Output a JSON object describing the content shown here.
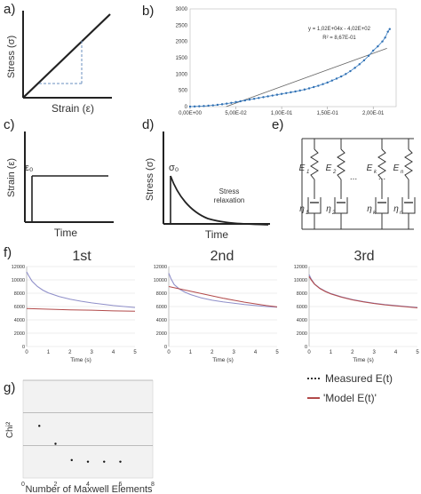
{
  "labels": {
    "a": "a)",
    "b": "b)",
    "c": "c)",
    "d": "d)",
    "e": "e)",
    "f": "f)",
    "g": "g)"
  },
  "panel_a": {
    "ylabel": "Stress (σ)",
    "xlabel": "Strain (ε)"
  },
  "panel_c": {
    "ylabel": "Strain (ε)",
    "xlabel": "Time",
    "level": "ε₀"
  },
  "panel_d": {
    "ylabel": "Stress (σ)",
    "xlabel": "Time",
    "level": "σ₀",
    "annotation_line1": "Stress",
    "annotation_line2": "relaxation"
  },
  "panel_e": {
    "springs": [
      "E",
      "E",
      "E",
      "E"
    ],
    "spring_subs": [
      "1",
      "2",
      "k",
      "n"
    ],
    "dashpots": [
      "η",
      "η",
      "η",
      "η"
    ],
    "dashpot_subs": [
      "1",
      "2",
      "k",
      "n"
    ],
    "ellipsis": "..."
  },
  "panel_f": {
    "runs": [
      "1st",
      "2nd",
      "3rd"
    ],
    "legend_measured": "Measured E(t)",
    "legend_model": "'Model E(t)'",
    "colors": {
      "measured": "#8f8fc9",
      "model": "#b24a4a"
    }
  },
  "chart_data": [
    {
      "id": "b",
      "type": "scatter",
      "equation": "y = 1,02E+04x - 4,02E+02",
      "r2": "R² = 8,67E-01",
      "xticks": [
        "0,00E+00",
        "5,00E-02",
        "1,00E-01",
        "1,50E-01",
        "2,00E-01"
      ],
      "xtick_values": [
        0,
        0.05,
        0.1,
        0.15,
        0.2
      ],
      "yticks": [
        "0",
        "500",
        "1000",
        "1500",
        "2000",
        "2500",
        "3000"
      ],
      "xlim": [
        0,
        0.225
      ],
      "ylim": [
        0,
        3000
      ],
      "trendline": {
        "slope": 10200,
        "intercept": -402
      },
      "points": [
        [
          0.0,
          0
        ],
        [
          0.005,
          5
        ],
        [
          0.01,
          10
        ],
        [
          0.015,
          18
        ],
        [
          0.02,
          28
        ],
        [
          0.025,
          40
        ],
        [
          0.03,
          55
        ],
        [
          0.035,
          72
        ],
        [
          0.04,
          92
        ],
        [
          0.045,
          115
        ],
        [
          0.05,
          140
        ],
        [
          0.055,
          165
        ],
        [
          0.06,
          190
        ],
        [
          0.065,
          215
        ],
        [
          0.07,
          240
        ],
        [
          0.075,
          265
        ],
        [
          0.08,
          290
        ],
        [
          0.085,
          315
        ],
        [
          0.09,
          340
        ],
        [
          0.095,
          365
        ],
        [
          0.1,
          390
        ],
        [
          0.105,
          415
        ],
        [
          0.11,
          440
        ],
        [
          0.115,
          465
        ],
        [
          0.12,
          495
        ],
        [
          0.125,
          525
        ],
        [
          0.13,
          560
        ],
        [
          0.135,
          600
        ],
        [
          0.14,
          640
        ],
        [
          0.145,
          690
        ],
        [
          0.15,
          740
        ],
        [
          0.155,
          800
        ],
        [
          0.16,
          860
        ],
        [
          0.165,
          925
        ],
        [
          0.17,
          1000
        ],
        [
          0.175,
          1090
        ],
        [
          0.18,
          1190
        ],
        [
          0.185,
          1300
        ],
        [
          0.19,
          1420
        ],
        [
          0.195,
          1560
        ],
        [
          0.2,
          1720
        ],
        [
          0.205,
          1850
        ],
        [
          0.21,
          2000
        ],
        [
          0.213,
          2120
        ],
        [
          0.216,
          2300
        ],
        [
          0.218,
          2380
        ]
      ]
    },
    {
      "id": "f1",
      "type": "line",
      "xlabel": "Time (s)",
      "xticks": [
        0,
        1,
        2,
        3,
        4,
        5
      ],
      "yticks": [
        0,
        2000,
        4000,
        6000,
        8000,
        10000,
        12000
      ],
      "xlim": [
        0,
        5
      ],
      "ylim": [
        0,
        12000
      ],
      "series": [
        {
          "name": "Measured E(t)",
          "x": [
            0,
            0.1,
            0.25,
            0.5,
            0.75,
            1,
            1.5,
            2,
            2.5,
            3,
            3.5,
            4,
            4.5,
            5
          ],
          "y": [
            11200,
            10600,
            9800,
            9000,
            8450,
            8050,
            7500,
            7100,
            6800,
            6550,
            6350,
            6150,
            6000,
            5850
          ]
        },
        {
          "name": "'Model E(t)'",
          "x": [
            0,
            1,
            2,
            3,
            4,
            5
          ],
          "y": [
            5700,
            5600,
            5500,
            5450,
            5350,
            5300
          ]
        }
      ]
    },
    {
      "id": "f2",
      "type": "line",
      "xlabel": "Time (s)",
      "xticks": [
        0,
        1,
        2,
        3,
        4,
        5
      ],
      "yticks": [
        0,
        2000,
        4000,
        6000,
        8000,
        10000,
        12000
      ],
      "xlim": [
        0,
        5
      ],
      "ylim": [
        0,
        12000
      ],
      "series": [
        {
          "name": "Measured E(t)",
          "x": [
            0,
            0.1,
            0.25,
            0.5,
            0.75,
            1,
            1.5,
            2,
            2.5,
            3,
            3.5,
            4,
            4.5,
            5
          ],
          "y": [
            11000,
            10200,
            9300,
            8600,
            8150,
            7800,
            7300,
            6950,
            6700,
            6500,
            6300,
            6150,
            6000,
            5900
          ]
        },
        {
          "name": "'Model E(t)'",
          "x": [
            0,
            0.5,
            1,
            1.5,
            2,
            2.5,
            3,
            3.5,
            4,
            4.5,
            5
          ],
          "y": [
            9000,
            8650,
            8300,
            7950,
            7600,
            7250,
            6950,
            6650,
            6400,
            6150,
            5950
          ]
        }
      ]
    },
    {
      "id": "f3",
      "type": "line",
      "xlabel": "Time (s)",
      "xticks": [
        0,
        1,
        2,
        3,
        4,
        5
      ],
      "yticks": [
        0,
        2000,
        4000,
        6000,
        8000,
        10000,
        12000
      ],
      "xlim": [
        0,
        5
      ],
      "ylim": [
        0,
        12000
      ],
      "series": [
        {
          "name": "Measured E(t)",
          "x": [
            0,
            0.1,
            0.25,
            0.5,
            0.75,
            1,
            1.5,
            2,
            2.5,
            3,
            3.5,
            4,
            4.5,
            5
          ],
          "y": [
            10800,
            10100,
            9400,
            8750,
            8300,
            7950,
            7450,
            7050,
            6750,
            6500,
            6300,
            6150,
            6000,
            5850
          ]
        },
        {
          "name": "'Model E(t)'",
          "x": [
            0,
            0.1,
            0.25,
            0.5,
            0.75,
            1,
            1.5,
            2,
            2.5,
            3,
            3.5,
            4,
            4.5,
            5
          ],
          "y": [
            10500,
            10000,
            9350,
            8700,
            8250,
            7900,
            7400,
            7000,
            6700,
            6450,
            6250,
            6100,
            5950,
            5800
          ]
        }
      ]
    },
    {
      "id": "g",
      "type": "scatter",
      "ylabel": "Chi²",
      "xlabel": "Number of Maxwell Elements",
      "xticks": [
        0,
        2,
        4,
        6,
        8
      ],
      "xlim": [
        0,
        8
      ],
      "ylim": [
        0,
        3
      ],
      "gridlines_y": [
        1,
        2,
        3
      ],
      "points": [
        [
          1,
          1.6
        ],
        [
          2,
          1.05
        ],
        [
          3,
          0.55
        ],
        [
          4,
          0.5
        ],
        [
          5,
          0.5
        ],
        [
          6,
          0.5
        ]
      ]
    }
  ]
}
